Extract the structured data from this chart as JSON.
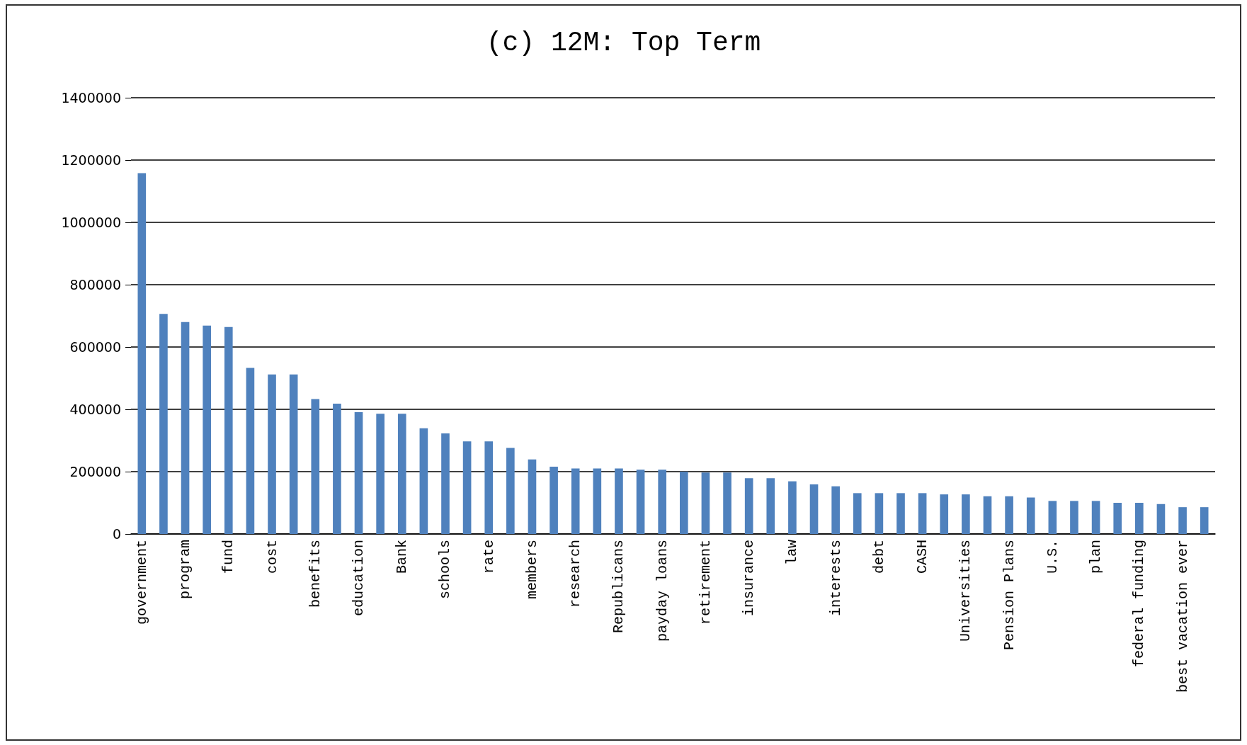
{
  "chart_data": {
    "type": "bar",
    "title": "(c) 12M: Top Term",
    "categories": [
      "government",
      null,
      "program",
      null,
      "fund",
      null,
      "cost",
      null,
      "benefits",
      null,
      "education",
      null,
      "Bank",
      null,
      "schools",
      null,
      "rate",
      null,
      "members",
      null,
      "research",
      null,
      "Republicans",
      null,
      "payday loans",
      null,
      "retirement",
      null,
      "insurance",
      null,
      "law",
      null,
      "interests",
      null,
      "debt",
      null,
      "CASH",
      null,
      "Universities",
      null,
      "Pension Plans",
      null,
      "U.S.",
      null,
      "plan",
      null,
      "federal funding",
      null,
      "best vacation ever",
      null
    ],
    "values": [
      1158000,
      706000,
      680000,
      669000,
      664000,
      533000,
      512000,
      512000,
      433000,
      418000,
      391000,
      386000,
      386000,
      339000,
      323000,
      297000,
      297000,
      276000,
      239000,
      216000,
      210000,
      210000,
      210000,
      206000,
      206000,
      200000,
      197000,
      197000,
      179000,
      179000,
      169000,
      159000,
      153000,
      131000,
      131000,
      131000,
      131000,
      127000,
      127000,
      121000,
      121000,
      117000,
      106000,
      106000,
      106000,
      100000,
      100000,
      96000,
      86000,
      86000
    ],
    "color": "#4f81bd",
    "ylim": [
      0,
      1400000
    ],
    "yticks": [
      0,
      200000,
      400000,
      600000,
      800000,
      1000000,
      1200000,
      1400000
    ],
    "grid": "y"
  }
}
